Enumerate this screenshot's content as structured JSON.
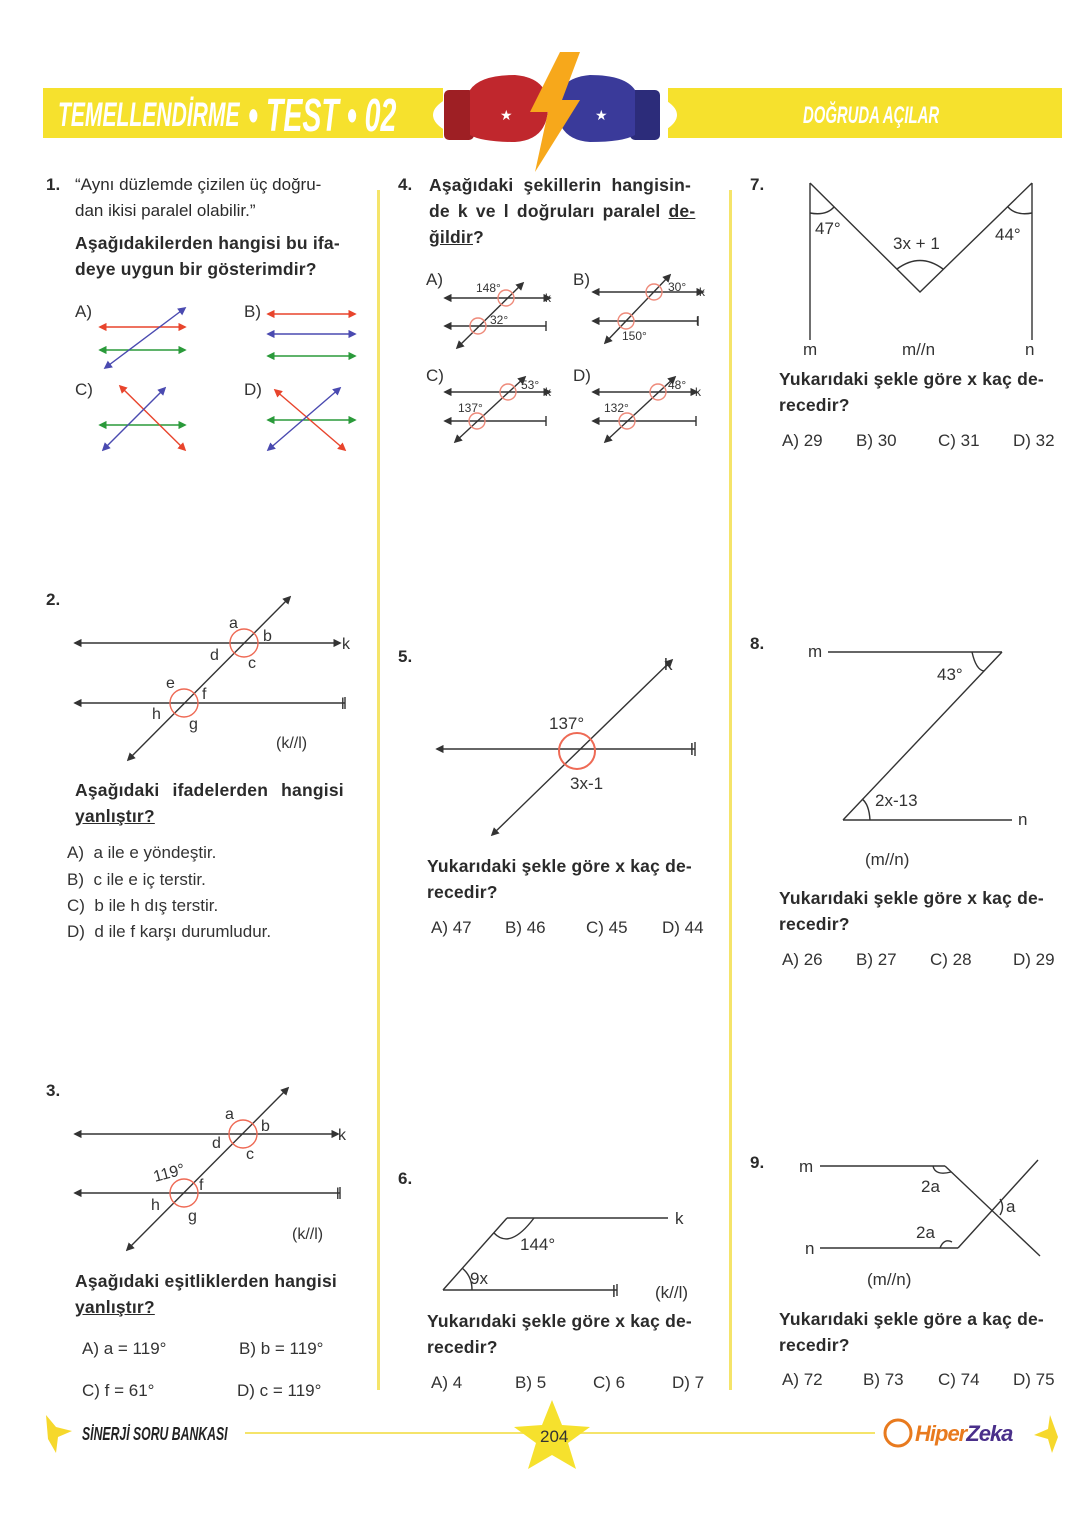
{
  "header": {
    "series": "TEMELLENDİRME",
    "test_label": "TEST",
    "test_number": "02",
    "topic": "DOĞRUDA AÇILAR",
    "accent_color": "#f6e12d",
    "glove_colors": [
      "#c0272d",
      "#3a3a9a"
    ],
    "bolt_color": "#f7a81b"
  },
  "q1": {
    "number": "1.",
    "lines": [
      "“Aynı düzlemde çizilen üç doğru-",
      "dan ikisi paralel olabilir.”"
    ],
    "bold_lines": [
      "Aşağıdakilerden hangisi bu ifa-",
      "deye uygun bir gösterimdir?"
    ],
    "options": [
      "A)",
      "B)",
      "C)",
      "D)"
    ],
    "line_colors": {
      "red": "#e8442c",
      "green": "#2a9a3a",
      "purple": "#4a4ab0"
    }
  },
  "q2": {
    "number": "2.",
    "labels": {
      "a": "a",
      "b": "b",
      "c": "c",
      "d": "d",
      "e": "e",
      "f": "f",
      "g": "g",
      "h": "h",
      "k": "k",
      "l": "l",
      "parallel": "(k//l)"
    },
    "bold_line1": "Aşağıdaki ifadelerden hangisi",
    "bold_line2": "yanlıştır?",
    "options": [
      {
        "letter": "A)",
        "text": "a ile e yöndeştir."
      },
      {
        "letter": "B)",
        "text": "c ile e iç terstir."
      },
      {
        "letter": "C)",
        "text": "b ile h dış terstir."
      },
      {
        "letter": "D)",
        "text": "d ile f karşı durumludur."
      }
    ]
  },
  "q3": {
    "number": "3.",
    "labels": {
      "a": "a",
      "b": "b",
      "c": "c",
      "d": "d",
      "angle": "119°",
      "f": "f",
      "g": "g",
      "h": "h",
      "k": "k",
      "l": "l",
      "parallel": "(k//l)"
    },
    "bold_line1": "Aşağıdaki eşitliklerden hangisi",
    "bold_line2": "yanlıştır?",
    "options": [
      "A) a = 119°",
      "B) b = 119°",
      "C) f = 61°",
      "D) c = 119°"
    ]
  },
  "q4": {
    "number": "4.",
    "line1": "Aşağıdaki şekillerin hangisin-",
    "line2a": "de k ve l doğruları paralel ",
    "line2b": "de-",
    "line3a": "ğildir",
    "line3b": "?",
    "options": [
      {
        "letter": "A)",
        "top": "148°",
        "bottom": "32°"
      },
      {
        "letter": "B)",
        "top": "30°",
        "bottom": "150°"
      },
      {
        "letter": "C)",
        "top": "53°",
        "bottom": "137°"
      },
      {
        "letter": "D)",
        "top": "48°",
        "bottom": "132°"
      }
    ],
    "k": "k",
    "l": "l"
  },
  "q5": {
    "number": "5.",
    "labels": {
      "angle1": "137°",
      "angle2": "3x-1",
      "k": "k",
      "l": "l"
    },
    "lines": [
      "Yukarıdaki şekle göre x kaç de-",
      "recedir?"
    ],
    "options": [
      "A) 47",
      "B) 46",
      "C) 45",
      "D) 44"
    ]
  },
  "q6": {
    "number": "6.",
    "labels": {
      "angle1": "144°",
      "angle2": "9x",
      "k": "k",
      "l": "l",
      "parallel": "(k//l)"
    },
    "lines": [
      "Yukarıdaki şekle göre x kaç de-",
      "recedir?"
    ],
    "options": [
      "A) 4",
      "B) 5",
      "C) 6",
      "D) 7"
    ]
  },
  "q7": {
    "number": "7.",
    "labels": {
      "angle1": "47°",
      "angle2": "44°",
      "angle3": "3x + 1",
      "m": "m",
      "parallel": "m//n",
      "n": "n"
    },
    "lines": [
      "Yukarıdaki şekle göre x kaç de-",
      "recedir?"
    ],
    "options": [
      "A) 29",
      "B) 30",
      "C) 31",
      "D) 32"
    ]
  },
  "q8": {
    "number": "8.",
    "labels": {
      "m": "m",
      "angle1": "43°",
      "angle2": "2x-13",
      "n": "n",
      "parallel": "(m//n)"
    },
    "lines": [
      "Yukarıdaki şekle göre x kaç de-",
      "recedir?"
    ],
    "options": [
      "A) 26",
      "B) 27",
      "C) 28",
      "D) 29"
    ]
  },
  "q9": {
    "number": "9.",
    "labels": {
      "m": "m",
      "n": "n",
      "angle1": "2a",
      "angle2": "2a",
      "angle3": "a",
      "parallel": "(m//n)"
    },
    "lines": [
      "Yukarıdaki şekle göre a kaç de-",
      "recedir?"
    ],
    "options": [
      "A) 72",
      "B) 73",
      "C) 74",
      "D) 75"
    ]
  },
  "footer": {
    "book": "SİNERJİ SORU BANKASI",
    "page": "204",
    "brand_a": "Hiper",
    "brand_b": "Zeka",
    "brand_color_a": "#e87a1e",
    "brand_color_b": "#4a2f8a"
  }
}
